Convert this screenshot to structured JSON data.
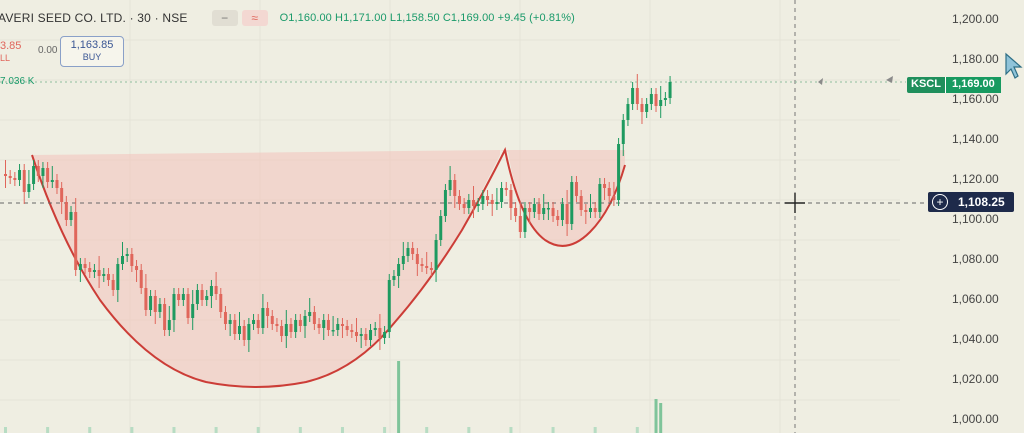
{
  "header": {
    "symbol_title": "AVERI SEED CO. LTD. · 30 · NSE",
    "minus_icon": "minus-icon",
    "wave_icon": "wave-icon",
    "ohlc": "O1,160.00 H1,171.00 L1,158.50 C1,169.00 +9.45 (+0.81%)"
  },
  "trade": {
    "sell_value": "3.85",
    "sell_label": "LL",
    "spread": "0.00",
    "buy_value": "1,163.85",
    "buy_label": "BUY"
  },
  "volume_label": "7.036 K",
  "price_axis": [
    "1,200.00",
    "1,180.00",
    "1,160.00",
    "1,140.00",
    "1,120.00",
    "1,100.00",
    "1,080.00",
    "1,060.00",
    "1,040.00",
    "1,020.00",
    "1,000.00"
  ],
  "price_tag": {
    "symbol": "KSCL",
    "price": "1,169.00"
  },
  "crosshair": {
    "value": "1,108.25"
  },
  "colors": {
    "up": "#1e9a60",
    "down": "#e0665b",
    "pattern_fill": "#f2c2bb",
    "pattern_line": "#cc3d37",
    "background": "#efeee2"
  },
  "chart_data": {
    "type": "candlestick",
    "ylim": [
      995,
      1205
    ],
    "close": [
      1122,
      1121,
      1120,
      1125,
      1114,
      1118,
      1127,
      1122,
      1126,
      1119,
      1120,
      1116,
      1109,
      1100,
      1104,
      1075,
      1078,
      1076,
      1074,
      1075,
      1072,
      1073,
      1070,
      1065,
      1078,
      1082,
      1083,
      1077,
      1075,
      1066,
      1055,
      1062,
      1054,
      1058,
      1045,
      1050,
      1063,
      1060,
      1063,
      1051,
      1058,
      1065,
      1060,
      1062,
      1067,
      1063,
      1054,
      1048,
      1050,
      1043,
      1047,
      1040,
      1048,
      1050,
      1046,
      1056,
      1052,
      1048,
      1047,
      1042,
      1048,
      1044,
      1050,
      1047,
      1052,
      1054,
      1048,
      1046,
      1050,
      1045,
      1045,
      1048,
      1047,
      1045,
      1044,
      1042,
      1043,
      1040,
      1045,
      1046,
      1041,
      1044,
      1070,
      1072,
      1078,
      1082,
      1086,
      1083,
      1078,
      1077,
      1076,
      1075,
      1090,
      1102,
      1115,
      1120,
      1112,
      1108,
      1106,
      1110,
      1107,
      1108,
      1112,
      1110,
      1108,
      1109,
      1116,
      1115,
      1106,
      1102,
      1094,
      1106,
      1104,
      1108,
      1103,
      1106,
      1106,
      1102,
      1100,
      1108,
      1098,
      1119,
      1112,
      1105,
      1104,
      1106,
      1104,
      1118,
      1116,
      1112,
      1110,
      1138,
      1150,
      1158,
      1166,
      1158,
      1154,
      1158,
      1163,
      1157,
      1160,
      1161,
      1169
    ]
  }
}
